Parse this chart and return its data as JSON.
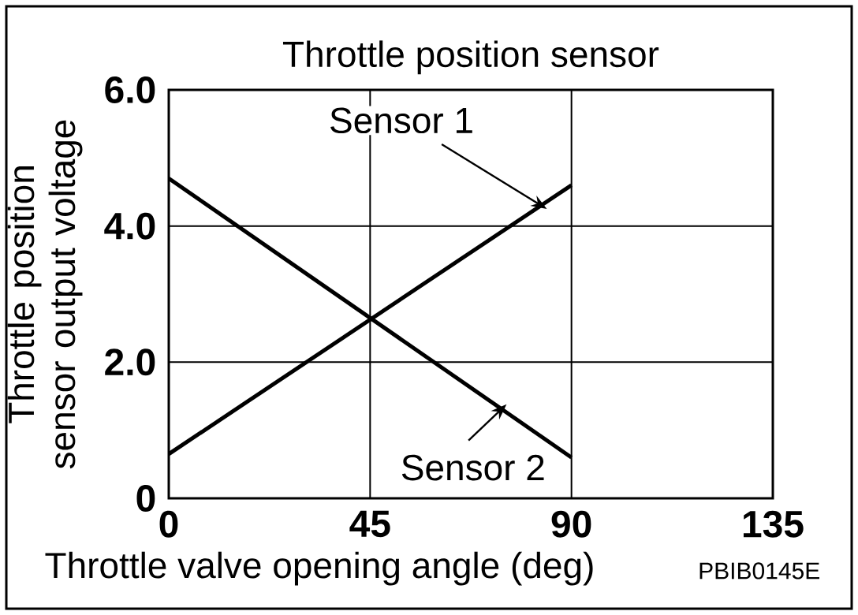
{
  "chart_data": {
    "type": "line",
    "title": "Throttle position sensor",
    "xlabel": "Throttle valve opening angle (deg)",
    "ylabel": "Throttle position sensor output voltage",
    "x": [
      0,
      90
    ],
    "series": [
      {
        "name": "Sensor 1",
        "color": "#000000",
        "values": [
          0.65,
          4.6
        ]
      },
      {
        "name": "Sensor 2",
        "color": "#000000",
        "values": [
          4.7,
          0.6
        ]
      }
    ],
    "xlim": [
      0,
      135
    ],
    "xticks": [
      0,
      45,
      90,
      135
    ],
    "ylim": [
      0,
      6
    ],
    "yticks": [
      0,
      {
        "value": 2,
        "label": "2.0"
      },
      {
        "value": 4,
        "label": "4.0"
      },
      {
        "value": 6,
        "label": "6.0"
      }
    ],
    "grid": true,
    "marker": "none",
    "line_style": "solid",
    "annotations": [
      "PBIB0145E"
    ]
  }
}
